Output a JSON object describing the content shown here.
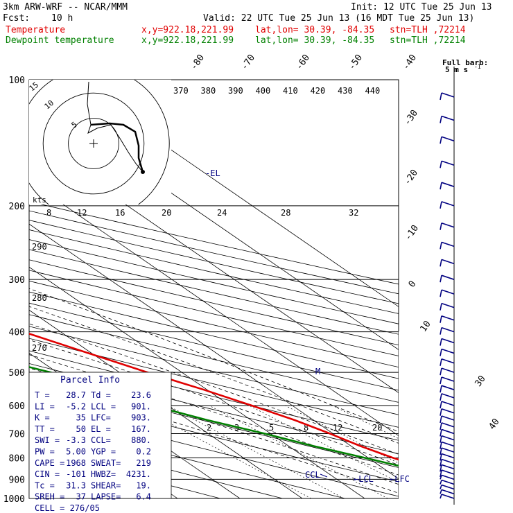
{
  "header": {
    "model": "3km ARW-WRF -- NCAR/MMM",
    "init": "Init: 12 UTC Tue 25 Jun 13",
    "fcst_label": "Fcst:",
    "fcst_value": "10 h",
    "valid": "Valid: 22 UTC Tue 25 Jun 13 (16 MDT Tue 25 Jun 13)",
    "temp_label": "Temperature",
    "dew_label": "Dewpoint temperature",
    "xy": "x,y=922.18,221.99",
    "latlon": "lat,lon= 30.39, -84.35",
    "stn": "stn=TLH ,72214"
  },
  "colors": {
    "temperature": "#e00000",
    "dewpoint": "#008000",
    "annotation": "#000080",
    "isobar": "#000000"
  },
  "barb_legend": {
    "title": "Full barb:",
    "value": "5 m s",
    "exp": "-1"
  },
  "parcel": {
    "title": "Parcel Info",
    "rows": [
      [
        "T  =",
        "28.7",
        "Td =",
        "23.6"
      ],
      [
        "LI =",
        "-5.2",
        "LCL =",
        "901."
      ],
      [
        "K  =",
        "35",
        "LFC=",
        "903."
      ],
      [
        "TT =",
        "50",
        "EL =",
        "167."
      ],
      [
        "SWI =",
        "-3.3",
        "CCL=",
        "880."
      ],
      [
        "PW =",
        "5.00",
        "YGP =",
        "0.2"
      ],
      [
        "CAPE =",
        "1968",
        "SWEAT=",
        "219"
      ],
      [
        "CIN =",
        "-101",
        "HWBZ=",
        "4231."
      ],
      [
        "Tc =",
        "31.3",
        "SHEAR=",
        "19."
      ],
      [
        "SREH =",
        "37",
        "LAPSE=",
        "6.4"
      ]
    ],
    "cell": "CELL = 276/05"
  },
  "annotations": {
    "el": "-EL",
    "m": "M",
    "ccl": "CCL",
    "lcl": "LCL",
    "lfc": "LFC"
  },
  "hodograph": {
    "unit": "kts",
    "rings": [
      "5",
      "10",
      "15"
    ]
  },
  "chart_data": {
    "type": "line",
    "title": "",
    "xlabel": "",
    "ylabel": "",
    "pressure_levels": [
      100,
      200,
      300,
      400,
      500,
      600,
      700,
      800,
      900,
      1000
    ],
    "isotherm_labels": [
      "-80",
      "-70",
      "-60",
      "-50",
      "-40",
      "-30",
      "-20",
      "-10",
      "0",
      "10",
      "30",
      "40"
    ],
    "theta_labels": [
      "370",
      "380",
      "390",
      "400",
      "410",
      "420",
      "430",
      "440"
    ],
    "theta_side_labels": [
      "290",
      "280",
      "270"
    ],
    "mixing_ratio_labels_top": [
      "8",
      "12",
      "16",
      "20",
      "24",
      "28",
      "32"
    ],
    "mixing_ratio_labels_bottom": [
      "2",
      "3",
      "5",
      "8",
      "12",
      "20"
    ],
    "series": [
      {
        "name": "Temperature",
        "pressure": [
          1000,
          950,
          925,
          900,
          850,
          800,
          750,
          700,
          650,
          600,
          550,
          500,
          450,
          400,
          350,
          300,
          250,
          225,
          200,
          175,
          150,
          125,
          100
        ],
        "values": [
          28.7,
          25.0,
          22.5,
          20.5,
          17.0,
          14.0,
          11.5,
          9.5,
          7.0,
          3.5,
          -0.5,
          -5.5,
          -10.5,
          -16.0,
          -22.5,
          -30.0,
          -39.0,
          -44.5,
          -51.0,
          -57.5,
          -64.5,
          -70.5,
          -75.5
        ]
      },
      {
        "name": "Dewpoint temperature",
        "pressure": [
          1000,
          950,
          925,
          900,
          850,
          800,
          750,
          700,
          650,
          600,
          550,
          500,
          450,
          400,
          350,
          300,
          275,
          250,
          225,
          200,
          175,
          150,
          125,
          100
        ],
        "values": [
          23.6,
          21.0,
          20.5,
          18.5,
          14.5,
          9.5,
          4.0,
          -1.0,
          -7.0,
          -12.5,
          -18.0,
          -21.0,
          -29.0,
          -36.0,
          -37.0,
          -37.5,
          -38.5,
          -46.0,
          -52.0,
          -55.0,
          -62.0,
          -70.0,
          -78.0,
          -85.0
        ]
      }
    ],
    "wind_barb_pressures": [
      1000,
      975,
      950,
      925,
      900,
      875,
      850,
      825,
      800,
      775,
      750,
      725,
      700,
      675,
      650,
      625,
      600,
      575,
      550,
      525,
      500,
      475,
      450,
      425,
      400,
      375,
      350,
      325,
      300,
      275,
      250,
      225,
      200,
      180,
      160,
      140,
      125,
      110
    ]
  }
}
